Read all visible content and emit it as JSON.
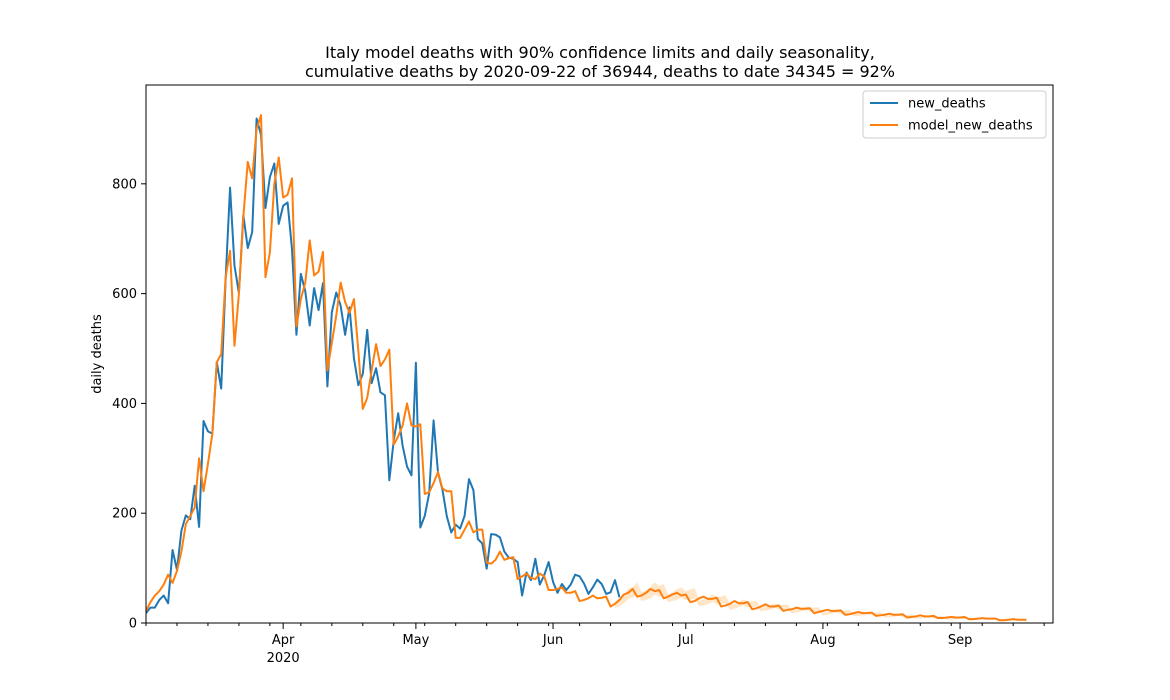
{
  "chart_data": {
    "type": "line",
    "title": [
      "Italy model deaths with 90% confidence limits and daily seasonality,",
      "cumulative deaths by 2020-09-22 of 36944, deaths to date 34345 = 92%"
    ],
    "xlabel": "",
    "ylabel": "daily deaths",
    "x_start": "2020-03-01",
    "xlim": [
      "2020-03-01",
      "2020-09-22"
    ],
    "ylim": [
      0,
      980
    ],
    "y_ticks": [
      0,
      200,
      400,
      600,
      800
    ],
    "x_major_ticks": [
      {
        "date": "2020-04-01",
        "label": "Apr",
        "sublabel": "2020"
      },
      {
        "date": "2020-05-01",
        "label": "May",
        "sublabel": ""
      },
      {
        "date": "2020-06-01",
        "label": "Jun",
        "sublabel": ""
      },
      {
        "date": "2020-07-01",
        "label": "Jul",
        "sublabel": ""
      },
      {
        "date": "2020-08-01",
        "label": "Aug",
        "sublabel": ""
      },
      {
        "date": "2020-09-01",
        "label": "Sep",
        "sublabel": ""
      }
    ],
    "legend": {
      "position": "upper-right",
      "entries": [
        "new_deaths",
        "model_new_deaths"
      ]
    },
    "colors": {
      "new_deaths": "#1f77b4",
      "model_new_deaths": "#ff7f0e",
      "band": "#ffe3c2"
    },
    "series": [
      {
        "name": "new_deaths",
        "color": "#1f77b4",
        "values": [
          18,
          28,
          28,
          42,
          50,
          36,
          133,
          97,
          168,
          196,
          189,
          250,
          175,
          368,
          349,
          345,
          475,
          427,
          627,
          793,
          651,
          601,
          743,
          683,
          712,
          919,
          889,
          756,
          812,
          837,
          727,
          760,
          766,
          681,
          525,
          636,
          604,
          542,
          610,
          570,
          619,
          431,
          566,
          602,
          578,
          525,
          575,
          482,
          433,
          454,
          534,
          437,
          464,
          420,
          415,
          260,
          333,
          382,
          323,
          285,
          269,
          474,
          174,
          195,
          236,
          369,
          274,
          243,
          194,
          165,
          179,
          172,
          195,
          262,
          242,
          153,
          145,
          99,
          162,
          161,
          156,
          130,
          119,
          117,
          111,
          50,
          92,
          78,
          117,
          70,
          87,
          111,
          75,
          55,
          71,
          60,
          70,
          88,
          85,
          72,
          53,
          65,
          79,
          71,
          53,
          56,
          78,
          47
        ]
      },
      {
        "name": "model_new_deaths",
        "color": "#ff7f0e",
        "values": [
          22,
          38,
          50,
          58,
          70,
          88,
          73,
          95,
          130,
          180,
          195,
          210,
          300,
          240,
          290,
          345,
          475,
          490,
          630,
          678,
          505,
          600,
          740,
          840,
          810,
          900,
          925,
          630,
          675,
          800,
          848,
          775,
          780,
          810,
          540,
          590,
          620,
          697,
          633,
          640,
          676,
          460,
          510,
          560,
          620,
          585,
          565,
          590,
          495,
          390,
          410,
          460,
          508,
          468,
          480,
          498,
          325,
          340,
          360,
          400,
          360,
          358,
          362,
          235,
          238,
          255,
          275,
          245,
          240,
          240,
          155,
          155,
          170,
          185,
          165,
          170,
          170,
          110,
          108,
          115,
          130,
          115,
          118,
          120,
          80,
          85,
          90,
          82,
          80,
          90,
          85,
          60,
          60,
          62,
          65,
          55,
          55,
          58,
          40,
          42,
          45,
          50,
          45,
          46,
          48,
          30,
          35,
          42,
          52,
          55,
          62,
          48,
          50,
          55,
          62,
          58,
          60,
          45,
          48,
          52,
          55,
          50,
          52,
          38,
          40,
          45,
          48,
          44,
          44,
          46,
          30,
          32,
          35,
          40,
          36,
          36,
          38,
          25,
          27,
          30,
          34,
          30,
          30,
          32,
          22,
          24,
          25,
          28,
          26,
          26,
          27,
          18,
          20,
          22,
          24,
          22,
          22,
          23,
          15,
          16,
          18,
          20,
          18,
          18,
          19,
          13,
          14,
          15,
          17,
          15,
          15,
          16,
          10,
          11,
          12,
          14,
          12,
          12,
          13,
          9,
          9,
          10,
          11,
          10,
          10,
          11,
          7,
          7,
          8,
          9,
          8,
          8,
          8,
          5,
          5,
          6,
          7,
          6,
          6,
          6
        ]
      }
    ],
    "confidence_band": {
      "start_day": 106,
      "lower": [
        27,
        30,
        36,
        44,
        46,
        52,
        40,
        42,
        45,
        52,
        48,
        50,
        38,
        40,
        42,
        46,
        42,
        43,
        44,
        30,
        32,
        34,
        38,
        35,
        35,
        36,
        24,
        26,
        29,
        32,
        29,
        29,
        31,
        21,
        23,
        24,
        27,
        25,
        25,
        26,
        17,
        19,
        21,
        23,
        21,
        21,
        22,
        14,
        15,
        17,
        19,
        17,
        17,
        18,
        12,
        13,
        14,
        16,
        14,
        14,
        15,
        10,
        10,
        11,
        13,
        11,
        11,
        12,
        8,
        8,
        9,
        10,
        9,
        9,
        10,
        6,
        6,
        7,
        8,
        7,
        7,
        7,
        5,
        5,
        6,
        7,
        6,
        6,
        6
      ],
      "upper": [
        34,
        42,
        52,
        62,
        66,
        74,
        56,
        59,
        66,
        74,
        68,
        71,
        52,
        56,
        62,
        65,
        58,
        61,
        64,
        41,
        43,
        46,
        52,
        48,
        48,
        51,
        33,
        35,
        38,
        43,
        39,
        39,
        41,
        27,
        30,
        32,
        36,
        33,
        33,
        34,
        22,
        25,
        27,
        30,
        28,
        28,
        29,
        19,
        20,
        22,
        25,
        23,
        23,
        24,
        16,
        17,
        19,
        21,
        19,
        19,
        20,
        13,
        14,
        15,
        17,
        15,
        15,
        16,
        11,
        11,
        12,
        13,
        12,
        12,
        13,
        8,
        8,
        9,
        10,
        9,
        9,
        10,
        6,
        6,
        7,
        8,
        7,
        7,
        7
      ]
    }
  }
}
